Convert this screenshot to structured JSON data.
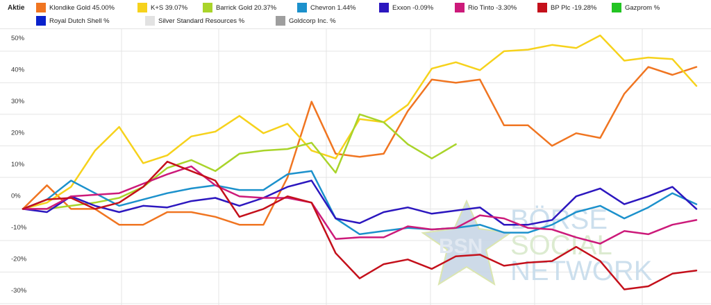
{
  "legend": {
    "title": "Aktie",
    "items": [
      {
        "label": "Klondike Gold  45.00%",
        "color": "#f07521"
      },
      {
        "label": "K+S  39.07%",
        "color": "#f6d21c"
      },
      {
        "label": "Barrick Gold  20.37%",
        "color": "#a9d42a"
      },
      {
        "label": "Chevron  1.44%",
        "color": "#1c91cc"
      },
      {
        "label": "Exxon  -0.09%",
        "color": "#2c17bf"
      },
      {
        "label": "Rio Tinto  -3.30%",
        "color": "#cc1a7a"
      },
      {
        "label": "BP Plc  -19.28%",
        "color": "#c4101b"
      },
      {
        "label": "Gazprom  %",
        "color": "#22c422"
      },
      {
        "label": "Royal Dutch Shell  %",
        "color": "#0a22cc"
      },
      {
        "label": "Silver Standard Resources  %",
        "color": "#e2e2e2"
      },
      {
        "label": "Goldcorp Inc.  %",
        "color": "#9e9e9e"
      }
    ]
  },
  "watermark": {
    "logo": "BSN",
    "line1": "BÖRSE",
    "line2": "SOCIAL",
    "line3": "NETWORK"
  },
  "chart_data": {
    "type": "line",
    "xlabel": "",
    "ylabel": "",
    "ylim": [
      -30,
      57
    ],
    "yticks": [
      -30,
      -20,
      -10,
      0,
      10,
      20,
      30,
      40,
      50
    ],
    "ytick_labels": [
      "-30%",
      "-20%",
      "-10%",
      "0%",
      "10%",
      "20%",
      "30%",
      "40%",
      "50%"
    ],
    "grid": true,
    "legend_position": "top",
    "x_count": 31,
    "series": [
      {
        "name": "Klondike Gold  45.00%",
        "color": "#f07521",
        "values": [
          0,
          7.5,
          0,
          0,
          -5,
          -5,
          -1,
          -1,
          -2.5,
          -5,
          -5,
          10,
          34,
          17.5,
          16.5,
          17.5,
          31,
          41,
          40,
          41,
          26.5,
          26.5,
          20,
          24,
          22.5,
          36.5,
          45,
          42.5,
          45
        ]
      },
      {
        "name": "K+S  39.07%",
        "color": "#f6d21c",
        "values": [
          0,
          2,
          7,
          18.5,
          26,
          14.5,
          17,
          23,
          24.5,
          29.5,
          24,
          27,
          18.5,
          16,
          28.5,
          27.5,
          33,
          44.5,
          46.5,
          44,
          50,
          50.5,
          52,
          51,
          55,
          47,
          48,
          47.5,
          39
        ]
      },
      {
        "name": "Barrick Gold  20.37%",
        "color": "#a9d42a",
        "values": [
          0,
          0,
          1,
          2,
          3.5,
          7,
          13,
          15.5,
          12,
          17.5,
          18.5,
          19,
          21,
          11.5,
          30,
          27.5,
          20.5,
          16,
          20.5
        ]
      },
      {
        "name": "Chevron  1.44%",
        "color": "#1c91cc",
        "values": [
          0,
          3,
          9,
          5,
          1,
          3,
          5,
          6.5,
          7.5,
          6,
          6,
          11,
          12,
          -3,
          -8,
          -7,
          -6,
          -6.5,
          -6,
          -5,
          -7.5,
          -7.5,
          -5,
          -1,
          1,
          -3,
          0.5,
          5,
          1.5
        ]
      },
      {
        "name": "Exxon  -0.09%",
        "color": "#2c17bf",
        "values": [
          0,
          -1,
          4,
          1,
          -1,
          1,
          0.5,
          2.5,
          3.5,
          1,
          3.5,
          7,
          9,
          -3,
          -4.5,
          -1,
          0.5,
          -1.5,
          -0.5,
          0.5,
          -5,
          -5,
          -3.5,
          4,
          6.5,
          1.5,
          4,
          7,
          0
        ]
      },
      {
        "name": "Rio Tinto  -3.30%",
        "color": "#cc1a7a",
        "values": [
          0,
          0,
          4,
          4.5,
          5,
          8,
          11,
          13.5,
          7.5,
          4,
          3.5,
          3.5,
          2,
          -9.5,
          -9,
          -9,
          -5.5,
          -6.5,
          -6,
          -2,
          -3,
          -6,
          -6.5,
          -9,
          -11,
          -7,
          -8,
          -5,
          -3.5
        ]
      },
      {
        "name": "BP Plc  -19.28%",
        "color": "#c4101b",
        "values": [
          0,
          3,
          3.5,
          0,
          2,
          7,
          15,
          12,
          9,
          -2.5,
          0,
          4,
          2,
          -14,
          -22,
          -17.5,
          -16,
          -19,
          -15,
          -14.5,
          -18,
          -17,
          -16.5,
          -12,
          -16.5,
          -25.5,
          -24.5,
          -20.5,
          -19.5
        ]
      }
    ]
  }
}
